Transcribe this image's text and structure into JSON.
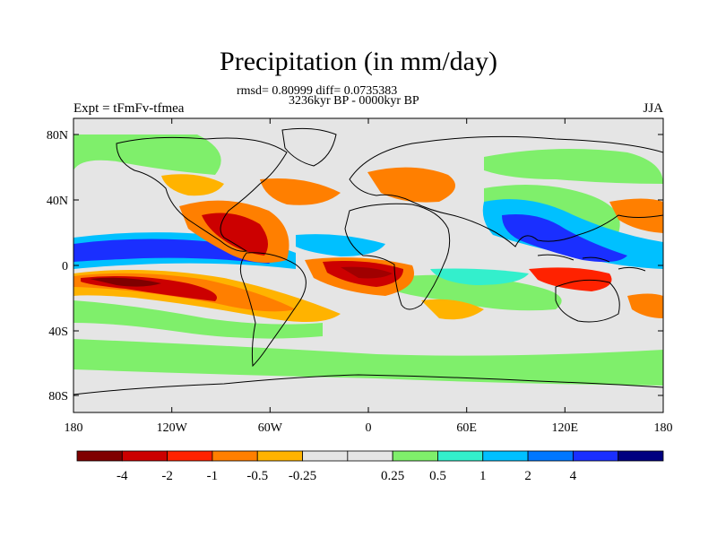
{
  "title": "Precipitation (in mm/day)",
  "subtitle_stats": "rmsd= 0.80999 diff= 0.0735383",
  "subtitle_period": "3236kyr BP - 0000kyr BP",
  "left_string": "Expt = tFmFv-tfmea",
  "right_string": "JJA",
  "lat_ticks": [
    "80N",
    "40N",
    "0",
    "40S",
    "80S"
  ],
  "lon_ticks": [
    "180",
    "120W",
    "60W",
    "0",
    "60E",
    "120E",
    "180"
  ],
  "colorbar": {
    "colors": [
      "#7f0000",
      "#cc0000",
      "#ff2200",
      "#ff7f00",
      "#ffb300",
      "#e5e5e5",
      "#e5e5e5",
      "#7fef6b",
      "#33efcc",
      "#00c0ff",
      "#0077ff",
      "#1a2fff",
      "#000080"
    ],
    "labels": [
      "-4",
      "-2",
      "-1",
      "-0.5",
      "-0.25",
      "0.25",
      "0.5",
      "1",
      "2",
      "4"
    ]
  },
  "colors": {
    "background": "#e5e5e5",
    "strong_dry": "#a00000",
    "dry": "#ff2200",
    "mild_dry": "#ff7f00",
    "weak_dry": "#ffb300",
    "weak_wet": "#7fef6b",
    "wet": "#33efcc",
    "wetter": "#00c0ff",
    "strong_wet": "#1a2fff"
  }
}
